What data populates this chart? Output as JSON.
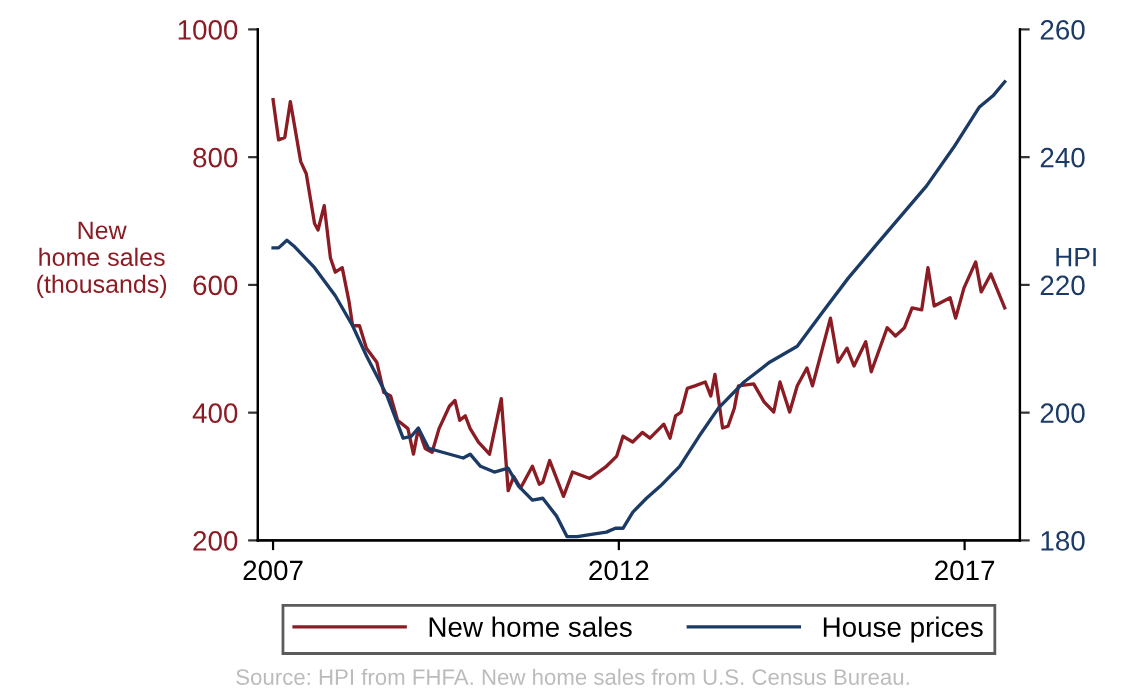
{
  "chart_data": {
    "type": "line",
    "ylabel": "New\nhome sales\n(thousands)",
    "y2label": "HPI",
    "xlim": [
      2006.78,
      2017.8
    ],
    "xticks": [
      2007,
      2012,
      2017
    ],
    "ylim": [
      200,
      1000
    ],
    "yticks": [
      200,
      400,
      600,
      800,
      1000
    ],
    "y2lim": [
      180,
      260
    ],
    "y2ticks": [
      180,
      200,
      220,
      240,
      260
    ],
    "grid": false,
    "legend": "bottom",
    "marker": "none",
    "line_style": "solid",
    "annotations": [
      "Source: HPI from FHFA. New home sales from U.S. Census Bureau."
    ],
    "series": [
      {
        "name": "New home sales",
        "color": "#8b1c24",
        "x": [
          2007.0,
          2007.08,
          2007.17,
          2007.25,
          2007.4,
          2007.48,
          2007.6,
          2007.65,
          2007.74,
          2007.83,
          2007.9,
          2008.0,
          2008.1,
          2008.15,
          2008.25,
          2008.35,
          2008.5,
          2008.6,
          2008.7,
          2008.8,
          2008.95,
          2009.03,
          2009.1,
          2009.2,
          2009.3,
          2009.4,
          2009.55,
          2009.63,
          2009.7,
          2009.78,
          2009.85,
          2009.97,
          2010.13,
          2010.3,
          2010.4,
          2010.48,
          2010.58,
          2010.75,
          2010.85,
          2010.9,
          2011.0,
          2011.2,
          2011.33,
          2011.58,
          2011.82,
          2011.97,
          2012.06,
          2012.2,
          2012.34,
          2012.45,
          2012.65,
          2012.74,
          2012.82,
          2012.9,
          2012.99,
          2013.1,
          2013.25,
          2013.33,
          2013.39,
          2013.5,
          2013.58,
          2013.67,
          2013.73,
          2013.95,
          2014.1,
          2014.24,
          2014.33,
          2014.47,
          2014.58,
          2014.72,
          2014.8,
          2015.06,
          2015.17,
          2015.3,
          2015.4,
          2015.57,
          2015.65,
          2015.88,
          2016.0,
          2016.13,
          2016.24,
          2016.38,
          2016.47,
          2016.56,
          2016.79,
          2016.87,
          2016.99,
          2017.16,
          2017.24,
          2017.38,
          2017.58
        ],
        "values": [
          890,
          827,
          831,
          887,
          793,
          774,
          696,
          686,
          724,
          642,
          620,
          627,
          573,
          536,
          536,
          501,
          479,
          432,
          426,
          388,
          375,
          335,
          375,
          344,
          338,
          375,
          410,
          419,
          388,
          395,
          375,
          354,
          335,
          422,
          278,
          300,
          282,
          316,
          288,
          291,
          325,
          269,
          307,
          297,
          316,
          332,
          363,
          354,
          369,
          360,
          382,
          360,
          395,
          401,
          438,
          442,
          448,
          426,
          460,
          376,
          379,
          407,
          442,
          445,
          417,
          401,
          448,
          401,
          442,
          470,
          442,
          548,
          479,
          501,
          473,
          511,
          464,
          533,
          520,
          533,
          564,
          561,
          627,
          567,
          580,
          548,
          595,
          636,
          589,
          617,
          564
        ]
      },
      {
        "name": "House prices",
        "color": "#1b3a66",
        "axis": "y2",
        "x": [
          2007.0,
          2007.08,
          2007.2,
          2007.3,
          2007.6,
          2007.9,
          2008.15,
          2008.35,
          2008.65,
          2008.88,
          2009.0,
          2009.1,
          2009.25,
          2009.45,
          2009.75,
          2009.85,
          2010.0,
          2010.2,
          2010.4,
          2010.55,
          2010.75,
          2010.9,
          2011.1,
          2011.25,
          2011.4,
          2011.58,
          2011.82,
          2011.95,
          2012.06,
          2012.2,
          2012.4,
          2012.6,
          2012.88,
          2013.16,
          2013.44,
          2013.81,
          2014.18,
          2014.58,
          2014.95,
          2015.32,
          2015.71,
          2016.08,
          2016.45,
          2016.84,
          2017.21,
          2017.41,
          2017.58
        ],
        "values": [
          225.8,
          225.8,
          227.0,
          226.1,
          222.7,
          218.3,
          213.6,
          208.9,
          202.6,
          196.0,
          196.3,
          197.6,
          194.4,
          193.8,
          192.9,
          193.5,
          191.6,
          190.7,
          191.3,
          188.5,
          186.3,
          186.6,
          183.8,
          180.6,
          180.6,
          180.9,
          181.3,
          181.9,
          181.9,
          184.4,
          186.6,
          188.5,
          191.6,
          196.3,
          200.7,
          204.8,
          207.9,
          210.4,
          215.8,
          221.1,
          226.1,
          230.8,
          235.5,
          241.5,
          247.8,
          249.6,
          251.8
        ]
      }
    ]
  }
}
